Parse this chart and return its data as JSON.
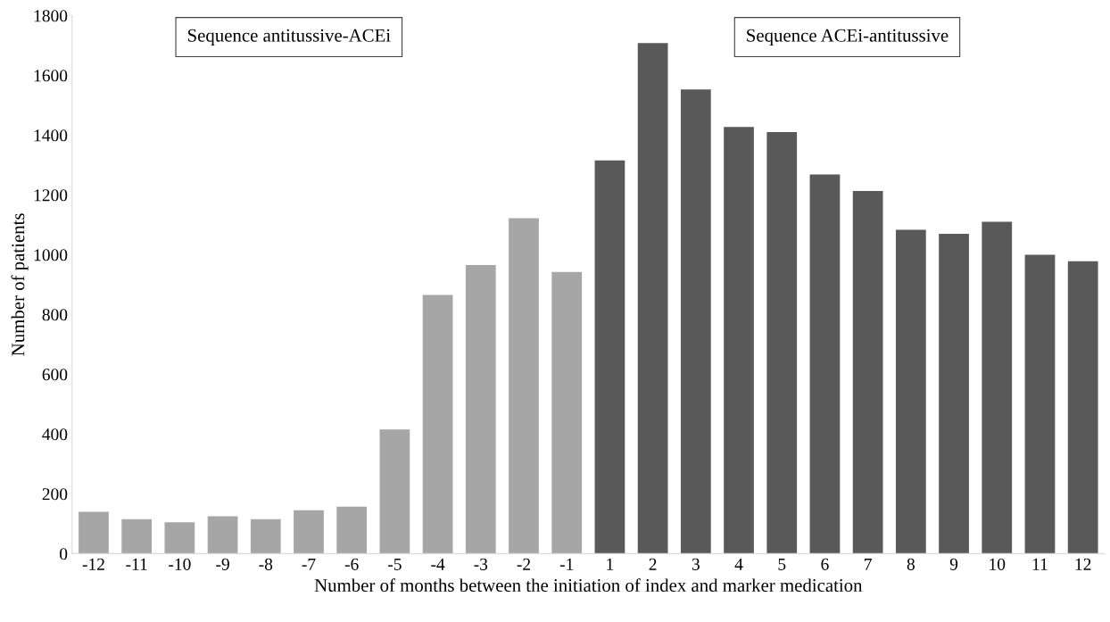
{
  "chart_data": {
    "type": "bar",
    "xlabel": "Number of months between the initiation of index and marker medication",
    "ylabel": "Number of patients",
    "categories": [
      "-12",
      "-11",
      "-10",
      "-9",
      "-8",
      "-7",
      "-6",
      "-5",
      "-4",
      "-3",
      "-2",
      "-1",
      "1",
      "2",
      "3",
      "4",
      "5",
      "6",
      "7",
      "8",
      "9",
      "10",
      "11",
      "12"
    ],
    "values": [
      140,
      115,
      105,
      125,
      115,
      145,
      157,
      415,
      865,
      965,
      1122,
      942,
      1315,
      1708,
      1553,
      1427,
      1410,
      1268,
      1213,
      1083,
      1070,
      1110,
      1000,
      978
    ],
    "colors": [
      "#a6a6a6",
      "#a6a6a6",
      "#a6a6a6",
      "#a6a6a6",
      "#a6a6a6",
      "#a6a6a6",
      "#a6a6a6",
      "#a6a6a6",
      "#a6a6a6",
      "#a6a6a6",
      "#a6a6a6",
      "#a6a6a6",
      "#595959",
      "#595959",
      "#595959",
      "#595959",
      "#595959",
      "#595959",
      "#595959",
      "#595959",
      "#595959",
      "#595959",
      "#595959",
      "#595959"
    ],
    "ylim": [
      0,
      1800
    ],
    "yticks": [
      0,
      200,
      400,
      600,
      800,
      1000,
      1200,
      1400,
      1600,
      1800
    ],
    "annotations": [
      "Sequence antitussive-ACEi",
      "Sequence ACEi-antitussive"
    ],
    "grid": false,
    "legend": false
  }
}
